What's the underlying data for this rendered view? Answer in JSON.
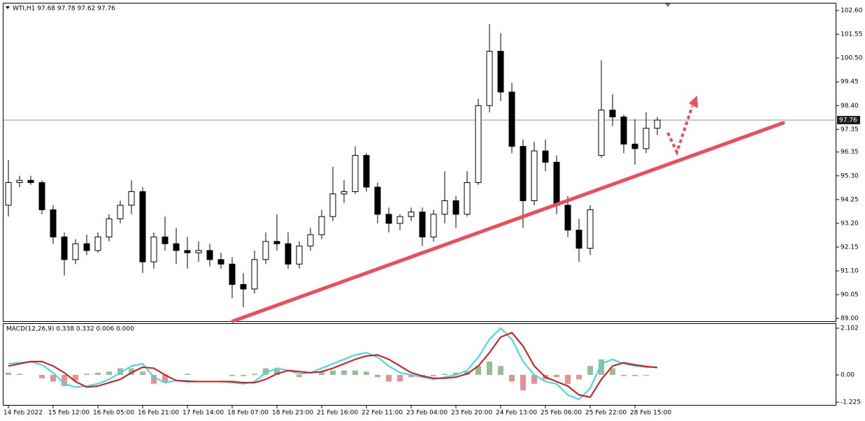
{
  "chart_data": [
    {
      "type": "candlestick",
      "title": "WTI,H1  97.68 97.78 97.62 97.76",
      "categories": [
        "14 Feb 2022",
        null,
        null,
        null,
        "15 Feb 12:00",
        null,
        null,
        null,
        "16 Feb 05:00",
        null,
        null,
        null,
        "16 Feb 21:00",
        null,
        null,
        null,
        "17 Feb 14:00",
        null,
        null,
        null,
        "18 Feb 07:00",
        null,
        null,
        null,
        "18 Feb 23:00",
        null,
        null,
        null,
        "21 Feb 16:00",
        null,
        null,
        null,
        "22 Feb 11:00",
        null,
        null,
        null,
        "23 Feb 04:00",
        null,
        null,
        null,
        "23 Feb 20:00",
        null,
        null,
        null,
        "24 Feb 13:00",
        null,
        null,
        null,
        "25 Feb 06:00",
        null,
        null,
        null,
        "25 Feb 22:00",
        null,
        null,
        null,
        "28 Feb 15:00",
        null,
        null
      ],
      "open": [
        94.0,
        95.0,
        95.1,
        95.0,
        93.8,
        92.6,
        91.6,
        92.3,
        92.0,
        92.6,
        93.4,
        94.0,
        94.6,
        91.5,
        92.6,
        92.3,
        92.0,
        91.9,
        92.0,
        91.6,
        91.4,
        90.5,
        90.3,
        91.6,
        92.4,
        92.3,
        91.4,
        92.2,
        92.7,
        93.5,
        94.5,
        94.6,
        96.2,
        94.8,
        93.6,
        93.2,
        93.5,
        93.7,
        92.6,
        93.6,
        94.2,
        93.6,
        95.0,
        98.4,
        100.8,
        99.0,
        96.6,
        94.2,
        96.4,
        95.9,
        94.0,
        92.9,
        92.1,
        96.2,
        98.2,
        97.9,
        96.7,
        96.5,
        97.4
      ],
      "high": [
        96.0,
        95.3,
        95.3,
        95.1,
        94.0,
        92.8,
        92.5,
        92.7,
        92.8,
        93.6,
        94.2,
        95.1,
        94.8,
        92.8,
        93.5,
        93.0,
        92.6,
        92.4,
        92.3,
        91.9,
        91.7,
        91.0,
        92.0,
        92.8,
        93.6,
        92.8,
        92.4,
        93.0,
        93.8,
        95.7,
        95.1,
        96.6,
        96.3,
        95.0,
        93.9,
        93.6,
        93.9,
        93.9,
        93.8,
        95.5,
        94.4,
        95.5,
        98.7,
        102.0,
        101.6,
        99.4,
        96.9,
        96.8,
        96.9,
        96.2,
        94.4,
        93.4,
        94.0,
        100.4,
        98.9,
        98.0,
        97.8,
        98.1,
        97.9
      ],
      "low": [
        93.5,
        94.8,
        94.9,
        93.6,
        92.3,
        90.9,
        91.4,
        91.8,
        91.9,
        92.4,
        93.2,
        93.6,
        91.0,
        91.2,
        92.0,
        91.4,
        91.2,
        91.5,
        91.3,
        91.2,
        89.9,
        89.5,
        90.1,
        91.4,
        92.0,
        91.2,
        91.2,
        92.0,
        92.5,
        93.3,
        94.1,
        94.5,
        94.6,
        93.2,
        92.8,
        92.9,
        93.3,
        92.2,
        92.4,
        93.2,
        93.0,
        93.5,
        94.9,
        98.1,
        98.6,
        96.3,
        93.0,
        94.0,
        95.5,
        93.6,
        92.6,
        91.5,
        91.8,
        96.1,
        97.5,
        96.3,
        95.8,
        96.3,
        97.1
      ],
      "close": [
        95.0,
        95.1,
        95.0,
        93.8,
        92.6,
        91.6,
        92.3,
        92.0,
        92.6,
        93.4,
        94.0,
        94.6,
        91.5,
        92.6,
        92.3,
        92.0,
        91.9,
        92.0,
        91.6,
        91.4,
        90.5,
        90.3,
        91.6,
        92.4,
        92.3,
        91.4,
        92.2,
        92.7,
        93.5,
        94.5,
        94.6,
        96.2,
        94.8,
        93.6,
        93.2,
        93.5,
        93.7,
        92.6,
        93.6,
        94.2,
        93.6,
        95.0,
        98.4,
        100.8,
        99.0,
        96.6,
        94.2,
        96.4,
        95.9,
        94.0,
        92.9,
        92.1,
        93.8,
        98.2,
        97.9,
        96.7,
        96.5,
        97.4,
        97.76
      ],
      "up_color": "#ffffff",
      "down_color": "#000000",
      "line_color": "#000000",
      "current_price": 97.76,
      "ylim": [
        88.88,
        102.91
      ],
      "yticks": [
        {
          "value": 102.6,
          "label": "102.60"
        },
        {
          "value": 101.55,
          "label": "101.55"
        },
        {
          "value": 100.5,
          "label": "100.50"
        },
        {
          "value": 99.45,
          "label": "99.45"
        },
        {
          "value": 98.4,
          "label": "98.40"
        },
        {
          "value": 97.35,
          "label": "97.35"
        },
        {
          "value": 96.35,
          "label": "96.35"
        },
        {
          "value": 95.3,
          "label": "95.30"
        },
        {
          "value": 94.25,
          "label": "94.25"
        },
        {
          "value": 93.2,
          "label": "93.20"
        },
        {
          "value": 92.15,
          "label": "92.15"
        },
        {
          "value": 91.1,
          "label": "91.10"
        },
        {
          "value": 90.05,
          "label": "90.05"
        },
        {
          "value": 89.0,
          "label": "89.00"
        }
      ]
    },
    {
      "type": "macd",
      "title": "MACD(12,26,9) 0.338 0.332 0.006 0.000",
      "macd": {
        "color": "#33dde8",
        "values": [
          0.5,
          0.55,
          0.6,
          0.45,
          0.1,
          -0.4,
          -0.55,
          -0.5,
          -0.4,
          -0.2,
          0.1,
          0.4,
          0.5,
          -0.1,
          -0.35,
          -0.25,
          -0.25,
          -0.3,
          -0.3,
          -0.3,
          -0.35,
          -0.4,
          -0.3,
          0.1,
          0.3,
          0.2,
          0.05,
          0.1,
          0.3,
          0.5,
          0.7,
          0.9,
          1.0,
          0.8,
          0.4,
          0.1,
          0.0,
          -0.1,
          -0.2,
          -0.1,
          0.0,
          0.2,
          0.8,
          1.6,
          2.1,
          1.6,
          0.6,
          0.0,
          -0.3,
          -0.4,
          -0.9,
          -1.1,
          -0.6,
          0.5,
          0.7,
          0.5,
          0.4,
          0.35,
          0.338
        ]
      },
      "signal": {
        "color": "#e01010",
        "values": [
          0.4,
          0.5,
          0.6,
          0.6,
          0.4,
          0.1,
          -0.3,
          -0.55,
          -0.5,
          -0.35,
          -0.2,
          0.1,
          0.35,
          0.3,
          0.0,
          -0.25,
          -0.3,
          -0.3,
          -0.3,
          -0.3,
          -0.3,
          -0.35,
          -0.35,
          -0.2,
          0.05,
          0.2,
          0.15,
          0.1,
          0.15,
          0.3,
          0.5,
          0.7,
          0.85,
          0.9,
          0.7,
          0.4,
          0.1,
          -0.05,
          -0.15,
          -0.15,
          -0.1,
          0.05,
          0.4,
          1.0,
          1.7,
          1.9,
          1.3,
          0.4,
          -0.1,
          -0.3,
          -0.5,
          -0.9,
          -1.0,
          -0.2,
          0.4,
          0.55,
          0.45,
          0.38,
          0.332
        ]
      },
      "histogram": {
        "up_color": "#2e7d32",
        "down_color": "#c62828",
        "values": [
          0.1,
          0.05,
          0.0,
          -0.15,
          -0.3,
          -0.5,
          -0.25,
          0.05,
          0.1,
          0.15,
          0.3,
          0.3,
          0.15,
          -0.4,
          -0.35,
          0.0,
          0.05,
          0.0,
          0.0,
          0.0,
          -0.05,
          -0.05,
          0.05,
          0.3,
          0.25,
          0.0,
          -0.1,
          0.0,
          0.15,
          0.2,
          0.2,
          0.2,
          0.15,
          -0.1,
          -0.3,
          -0.3,
          -0.1,
          -0.05,
          -0.05,
          0.05,
          0.1,
          0.15,
          0.4,
          0.6,
          0.4,
          -0.3,
          -0.7,
          -0.4,
          -0.2,
          -0.1,
          -0.4,
          -0.2,
          0.4,
          0.7,
          0.3,
          -0.05,
          -0.05,
          -0.03,
          0.006
        ]
      },
      "ylim": [
        -1.35,
        2.26
      ],
      "yticks": [
        2.102,
        {
          "value": 0,
          "label": "0.00"
        },
        -1.225
      ]
    }
  ]
}
